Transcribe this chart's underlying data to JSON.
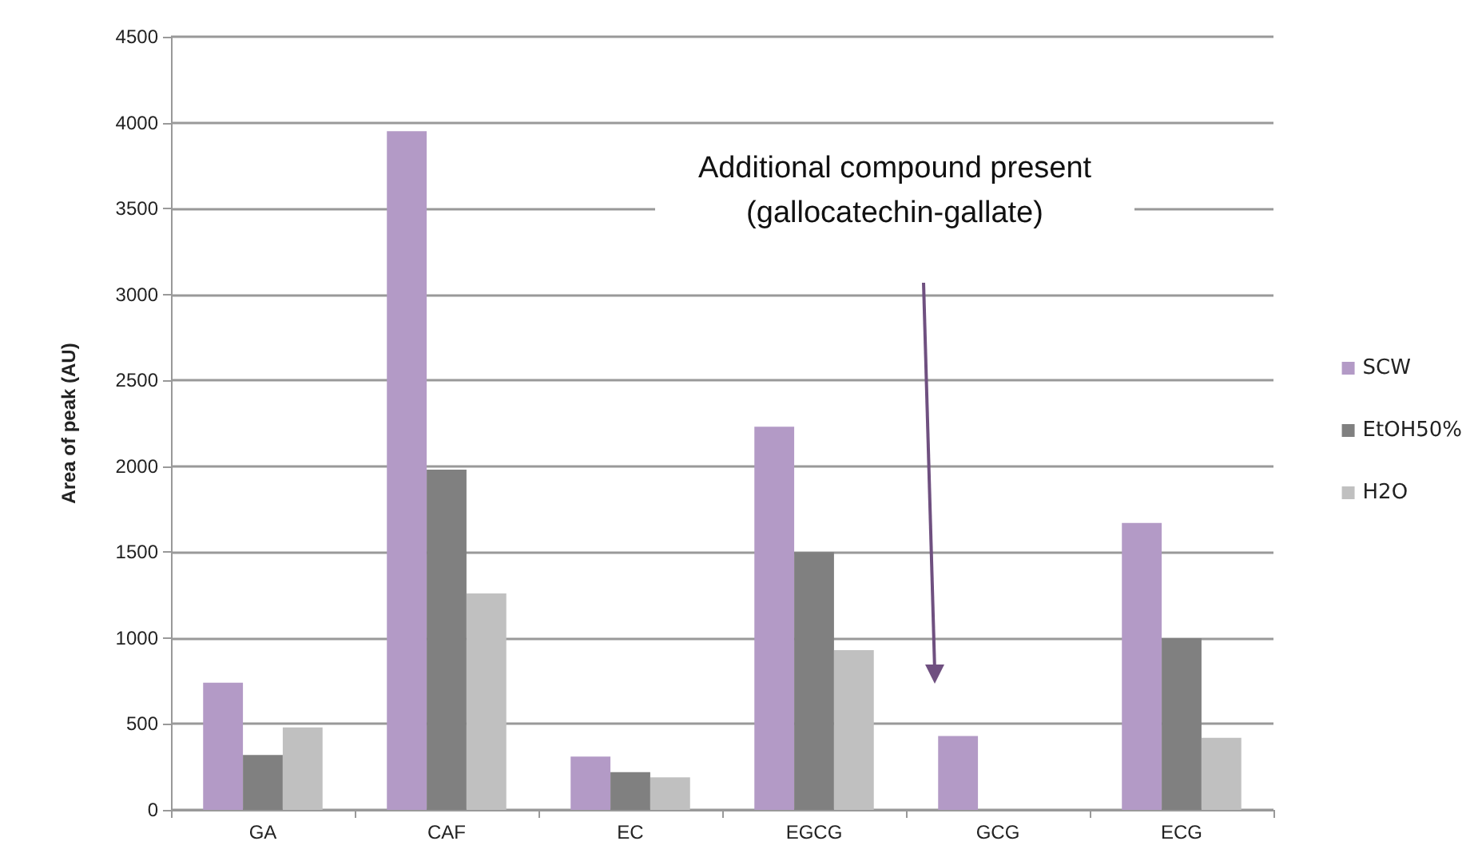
{
  "chart_data": {
    "type": "bar",
    "ylabel": "Area of peak (AU)",
    "categories": [
      "GA",
      "CAF",
      "EC",
      "EGCG",
      "GCG",
      "ECG"
    ],
    "series": [
      {
        "name": "SCW",
        "color": "#b39ac6",
        "values": [
          740,
          3950,
          310,
          2230,
          430,
          1670
        ]
      },
      {
        "name": "EtOH50%",
        "color": "#808080",
        "values": [
          320,
          1980,
          220,
          1500,
          0,
          1000
        ]
      },
      {
        "name": "H2O",
        "color": "#c0c0c0",
        "values": [
          480,
          1260,
          190,
          930,
          0,
          420
        ]
      }
    ],
    "ylim": [
      0,
      4500
    ],
    "yticks": [
      0,
      500,
      1000,
      1500,
      2000,
      2500,
      3000,
      3500,
      4000,
      4500
    ],
    "grid": "y",
    "legend": "right",
    "annotations": [
      "Additional compound present\n(gallocatechin-gallate)"
    ]
  }
}
